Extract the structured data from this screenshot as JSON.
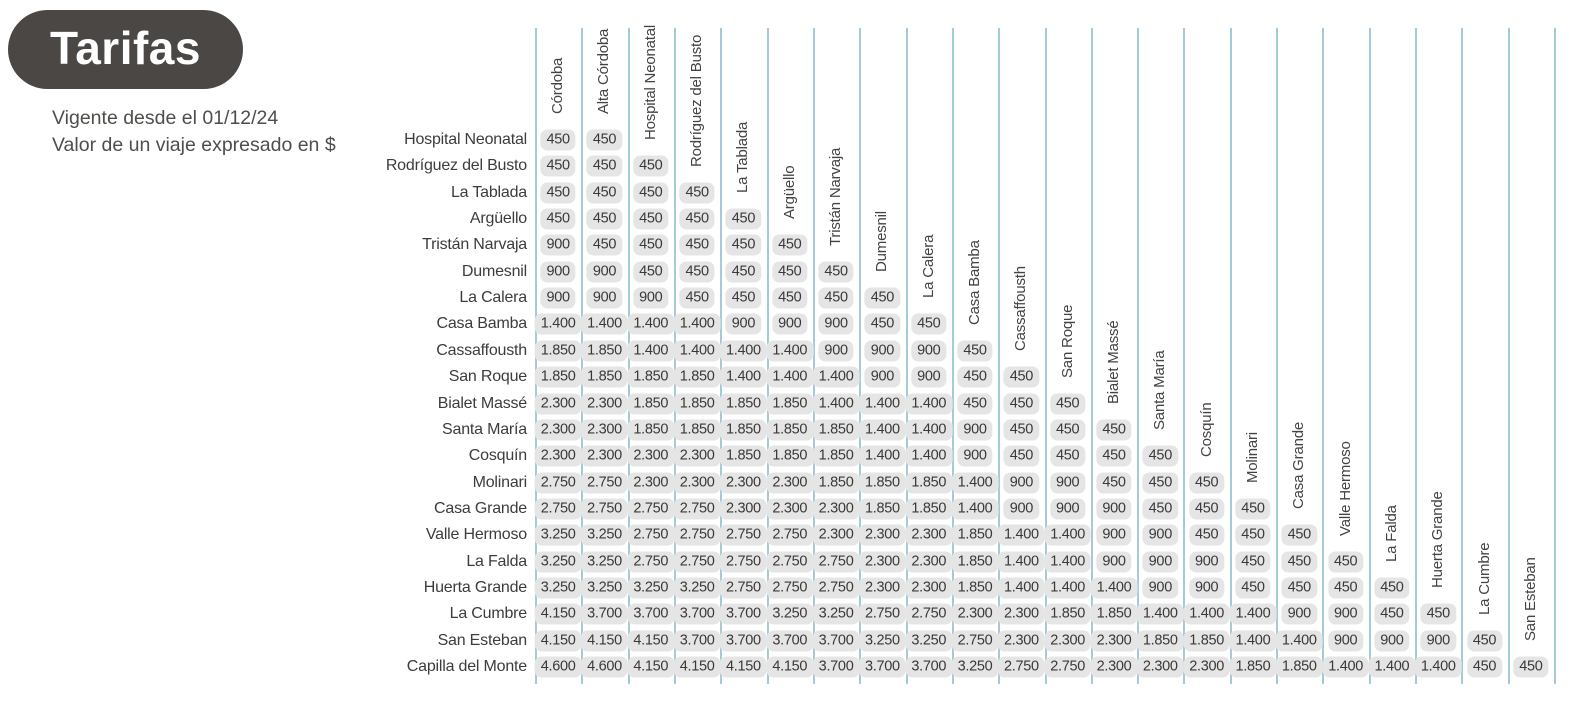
{
  "title": "Tarifas",
  "subtitle": {
    "line1": "Vigente desde el 01/12/24",
    "line2": "Valor de un viaje expresado en $"
  },
  "colors": {
    "badge_bg": "#4a4745",
    "badge_text": "#ffffff",
    "grid_line": "#a5cbd9",
    "cell_bg": "#e5e5e5",
    "text": "#3e3c3a"
  },
  "chart_data": {
    "type": "table",
    "title": "Tarifas",
    "notes": [
      "Vigente desde el 01/12/24",
      "Valor de un viaje expresado en $"
    ],
    "layout": "lower-triangular fare matrix, rotated column headers stepped above each column's first cell",
    "columns": [
      "Córdoba",
      "Alta Córdoba",
      "Hospital Neonatal",
      "Rodríguez del Busto",
      "La Tablada",
      "Argüello",
      "Tristán Narvaja",
      "Dumesnil",
      "La Calera",
      "Casa Bamba",
      "Cassaffousth",
      "San Roque",
      "Bialet Massé",
      "Santa María",
      "Cosquín",
      "Molinari",
      "Casa Grande",
      "Valle Hermoso",
      "La Falda",
      "Huerta Grande",
      "La Cumbre",
      "San Esteban"
    ],
    "rows": [
      {
        "label": "Hospital Neonatal",
        "values": [
          "450",
          "450"
        ]
      },
      {
        "label": "Rodríguez del Busto",
        "values": [
          "450",
          "450",
          "450"
        ]
      },
      {
        "label": "La Tablada",
        "values": [
          "450",
          "450",
          "450",
          "450"
        ]
      },
      {
        "label": "Argüello",
        "values": [
          "450",
          "450",
          "450",
          "450",
          "450"
        ]
      },
      {
        "label": "Tristán Narvaja",
        "values": [
          "900",
          "450",
          "450",
          "450",
          "450",
          "450"
        ]
      },
      {
        "label": "Dumesnil",
        "values": [
          "900",
          "900",
          "450",
          "450",
          "450",
          "450",
          "450"
        ]
      },
      {
        "label": "La Calera",
        "values": [
          "900",
          "900",
          "900",
          "450",
          "450",
          "450",
          "450",
          "450"
        ]
      },
      {
        "label": "Casa Bamba",
        "values": [
          "1.400",
          "1.400",
          "1.400",
          "1.400",
          "900",
          "900",
          "900",
          "450",
          "450"
        ]
      },
      {
        "label": "Cassaffousth",
        "values": [
          "1.850",
          "1.850",
          "1.400",
          "1.400",
          "1.400",
          "1.400",
          "900",
          "900",
          "900",
          "450"
        ]
      },
      {
        "label": "San Roque",
        "values": [
          "1.850",
          "1.850",
          "1.850",
          "1.850",
          "1.400",
          "1.400",
          "1.400",
          "900",
          "900",
          "450",
          "450"
        ]
      },
      {
        "label": "Bialet Massé",
        "values": [
          "2.300",
          "2.300",
          "1.850",
          "1.850",
          "1.850",
          "1.850",
          "1.400",
          "1.400",
          "1.400",
          "450",
          "450",
          "450"
        ]
      },
      {
        "label": "Santa María",
        "values": [
          "2.300",
          "2.300",
          "1.850",
          "1.850",
          "1.850",
          "1.850",
          "1.850",
          "1.400",
          "1.400",
          "900",
          "450",
          "450",
          "450"
        ]
      },
      {
        "label": "Cosquín",
        "values": [
          "2.300",
          "2.300",
          "2.300",
          "2.300",
          "1.850",
          "1.850",
          "1.850",
          "1.400",
          "1.400",
          "900",
          "450",
          "450",
          "450",
          "450"
        ]
      },
      {
        "label": "Molinari",
        "values": [
          "2.750",
          "2.750",
          "2.300",
          "2.300",
          "2.300",
          "2.300",
          "1.850",
          "1.850",
          "1.850",
          "1.400",
          "900",
          "900",
          "450",
          "450",
          "450"
        ]
      },
      {
        "label": "Casa Grande",
        "values": [
          "2.750",
          "2.750",
          "2.750",
          "2.750",
          "2.300",
          "2.300",
          "2.300",
          "1.850",
          "1.850",
          "1.400",
          "900",
          "900",
          "900",
          "450",
          "450",
          "450"
        ]
      },
      {
        "label": "Valle Hermoso",
        "values": [
          "3.250",
          "3.250",
          "2.750",
          "2.750",
          "2.750",
          "2.750",
          "2.300",
          "2.300",
          "2.300",
          "1.850",
          "1.400",
          "1.400",
          "900",
          "900",
          "450",
          "450",
          "450"
        ]
      },
      {
        "label": "La Falda",
        "values": [
          "3.250",
          "3.250",
          "2.750",
          "2.750",
          "2.750",
          "2.750",
          "2.750",
          "2.300",
          "2.300",
          "1.850",
          "1.400",
          "1.400",
          "900",
          "900",
          "900",
          "450",
          "450",
          "450"
        ]
      },
      {
        "label": "Huerta Grande",
        "values": [
          "3.250",
          "3.250",
          "3.250",
          "3.250",
          "2.750",
          "2.750",
          "2.750",
          "2.300",
          "2.300",
          "1.850",
          "1.400",
          "1.400",
          "1.400",
          "900",
          "900",
          "450",
          "450",
          "450",
          "450"
        ]
      },
      {
        "label": "La Cumbre",
        "values": [
          "4.150",
          "3.700",
          "3.700",
          "3.700",
          "3.700",
          "3.250",
          "3.250",
          "2.750",
          "2.750",
          "2.300",
          "2.300",
          "1.850",
          "1.850",
          "1.400",
          "1.400",
          "1.400",
          "900",
          "900",
          "450",
          "450"
        ]
      },
      {
        "label": "San Esteban",
        "values": [
          "4.150",
          "4.150",
          "4.150",
          "3.700",
          "3.700",
          "3.700",
          "3.700",
          "3.250",
          "3.250",
          "2.750",
          "2.300",
          "2.300",
          "2.300",
          "1.850",
          "1.850",
          "1.400",
          "1.400",
          "900",
          "900",
          "900",
          "450"
        ]
      },
      {
        "label": "Capilla del Monte",
        "values": [
          "4.600",
          "4.600",
          "4.150",
          "4.150",
          "4.150",
          "4.150",
          "3.700",
          "3.700",
          "3.700",
          "3.250",
          "2.750",
          "2.750",
          "2.300",
          "2.300",
          "2.300",
          "1.850",
          "1.850",
          "1.400",
          "1.400",
          "1.400",
          "450",
          "450"
        ]
      }
    ]
  }
}
